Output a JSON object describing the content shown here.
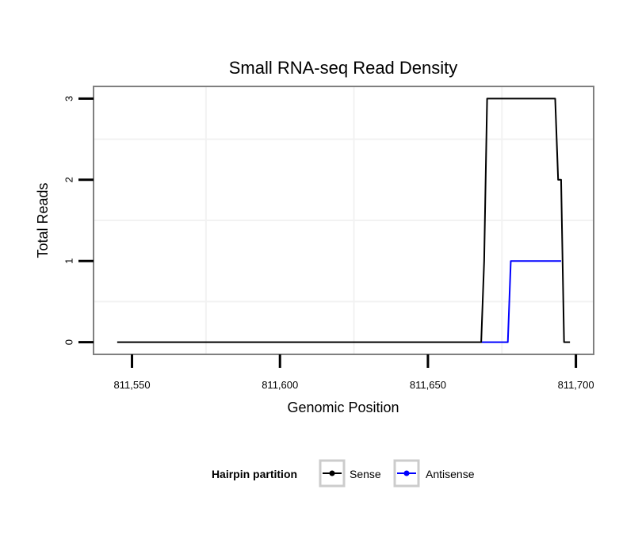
{
  "chart_data": {
    "type": "line",
    "title": "Small RNA-seq Read Density",
    "xlabel": "Genomic Position",
    "ylabel": "Total Reads",
    "xlim": [
      811537,
      811706
    ],
    "ylim": [
      -0.15,
      3.15
    ],
    "x_ticks": [
      811550,
      811600,
      811650,
      811700
    ],
    "x_tick_labels": [
      "811,550",
      "811,600",
      "811,650",
      "811,700"
    ],
    "y_ticks": [
      0,
      1,
      2,
      3
    ],
    "y_tick_labels": [
      "0",
      "1",
      "2",
      "3"
    ],
    "grid": true,
    "legend": {
      "title": "Hairpin partition",
      "position": "bottom",
      "entries": [
        "Sense",
        "Antisense"
      ]
    },
    "series": [
      {
        "name": "Sense",
        "color": "#000000",
        "x": [
          811545,
          811668,
          811669,
          811670,
          811692,
          811693,
          811694,
          811695,
          811696,
          811698
        ],
        "y": [
          0,
          0,
          1,
          3,
          3,
          3,
          2,
          2,
          0,
          0
        ]
      },
      {
        "name": "Antisense",
        "color": "#0000ff",
        "x": [
          811668,
          811677,
          811678,
          811694,
          811695
        ],
        "y": [
          0,
          0,
          1,
          1,
          1
        ]
      }
    ]
  }
}
